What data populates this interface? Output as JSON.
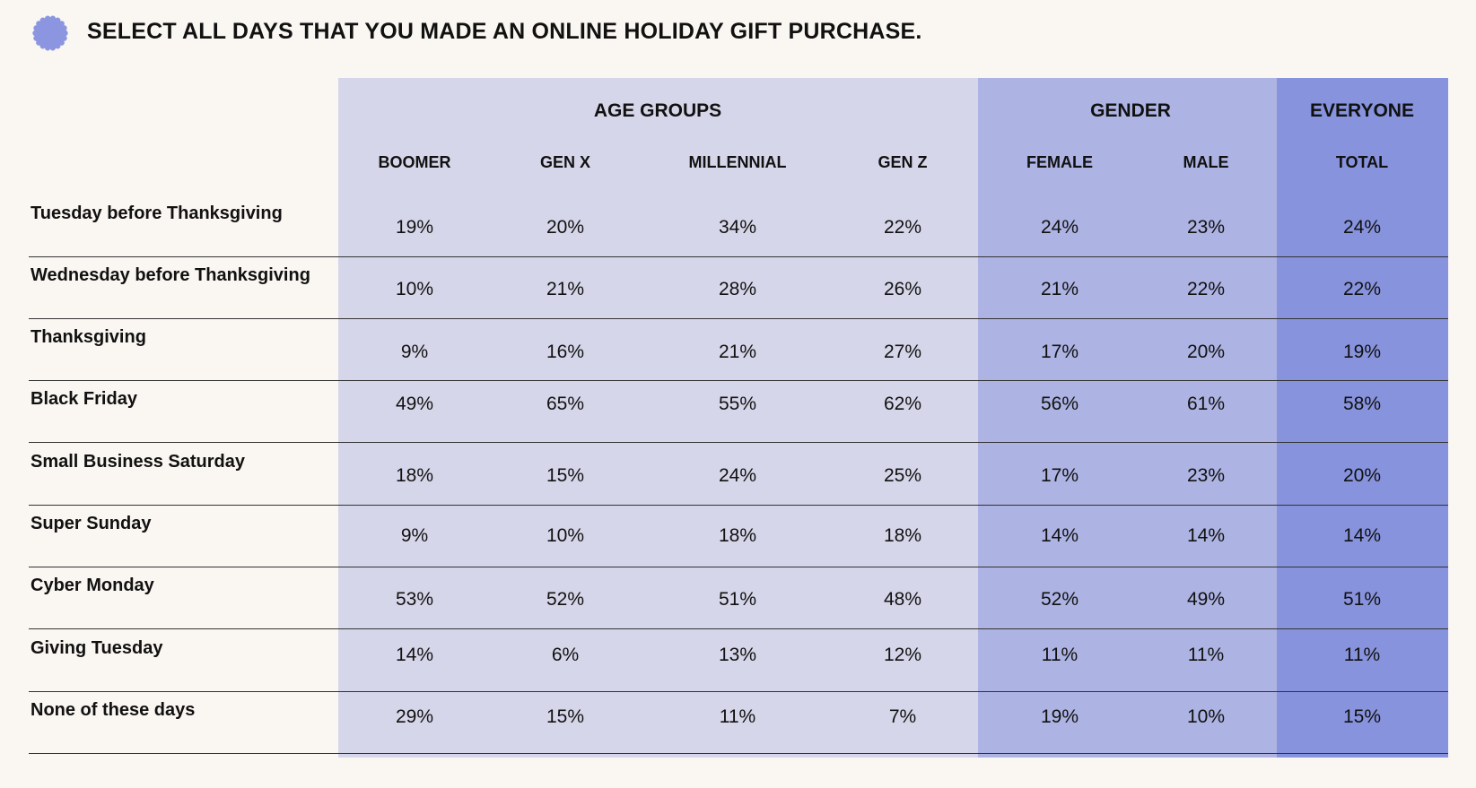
{
  "title": "SELECT ALL DAYS THAT YOU MADE AN ONLINE HOLIDAY GIFT PURCHASE.",
  "colors": {
    "background": "#faf6f2",
    "age_group": "#d6d6ea",
    "gender_group": "#adb3e2",
    "everyone_group": "#8793dd",
    "badge": "#8c96e0"
  },
  "groups": [
    {
      "label": "AGE GROUPS",
      "columns": [
        "BOOMER",
        "GEN X",
        "MILLENNIAL",
        "GEN Z"
      ]
    },
    {
      "label": "GENDER",
      "columns": [
        "FEMALE",
        "MALE"
      ]
    },
    {
      "label": "EVERYONE",
      "columns": [
        "TOTAL"
      ]
    }
  ],
  "chart_data": {
    "type": "table",
    "title": "SELECT ALL DAYS THAT YOU MADE AN ONLINE HOLIDAY GIFT PURCHASE.",
    "columns": [
      "BOOMER",
      "GEN X",
      "MILLENNIAL",
      "GEN Z",
      "FEMALE",
      "MALE",
      "TOTAL"
    ],
    "rows": [
      {
        "label": "Tuesday before Thanksgiving",
        "values": [
          "19%",
          "20%",
          "34%",
          "22%",
          "24%",
          "23%",
          "24%"
        ]
      },
      {
        "label": "Wednesday before Thanksgiving",
        "values": [
          "10%",
          "21%",
          "28%",
          "26%",
          "21%",
          "22%",
          "22%"
        ]
      },
      {
        "label": "Thanksgiving",
        "values": [
          "9%",
          "16%",
          "21%",
          "27%",
          "17%",
          "20%",
          "19%"
        ]
      },
      {
        "label": "Black Friday",
        "values": [
          "49%",
          "65%",
          "55%",
          "62%",
          "56%",
          "61%",
          "58%"
        ]
      },
      {
        "label": "Small Business Saturday",
        "values": [
          "18%",
          "15%",
          "24%",
          "25%",
          "17%",
          "23%",
          "20%"
        ]
      },
      {
        "label": "Super Sunday",
        "values": [
          "9%",
          "10%",
          "18%",
          "18%",
          "14%",
          "14%",
          "14%"
        ]
      },
      {
        "label": "Cyber Monday",
        "values": [
          "53%",
          "52%",
          "51%",
          "48%",
          "52%",
          "49%",
          "51%"
        ]
      },
      {
        "label": "Giving Tuesday",
        "values": [
          "14%",
          "6%",
          "13%",
          "12%",
          "11%",
          "11%",
          "11%"
        ]
      },
      {
        "label": "None of these days",
        "values": [
          "29%",
          "15%",
          "11%",
          "7%",
          "19%",
          "10%",
          "15%"
        ]
      }
    ]
  }
}
